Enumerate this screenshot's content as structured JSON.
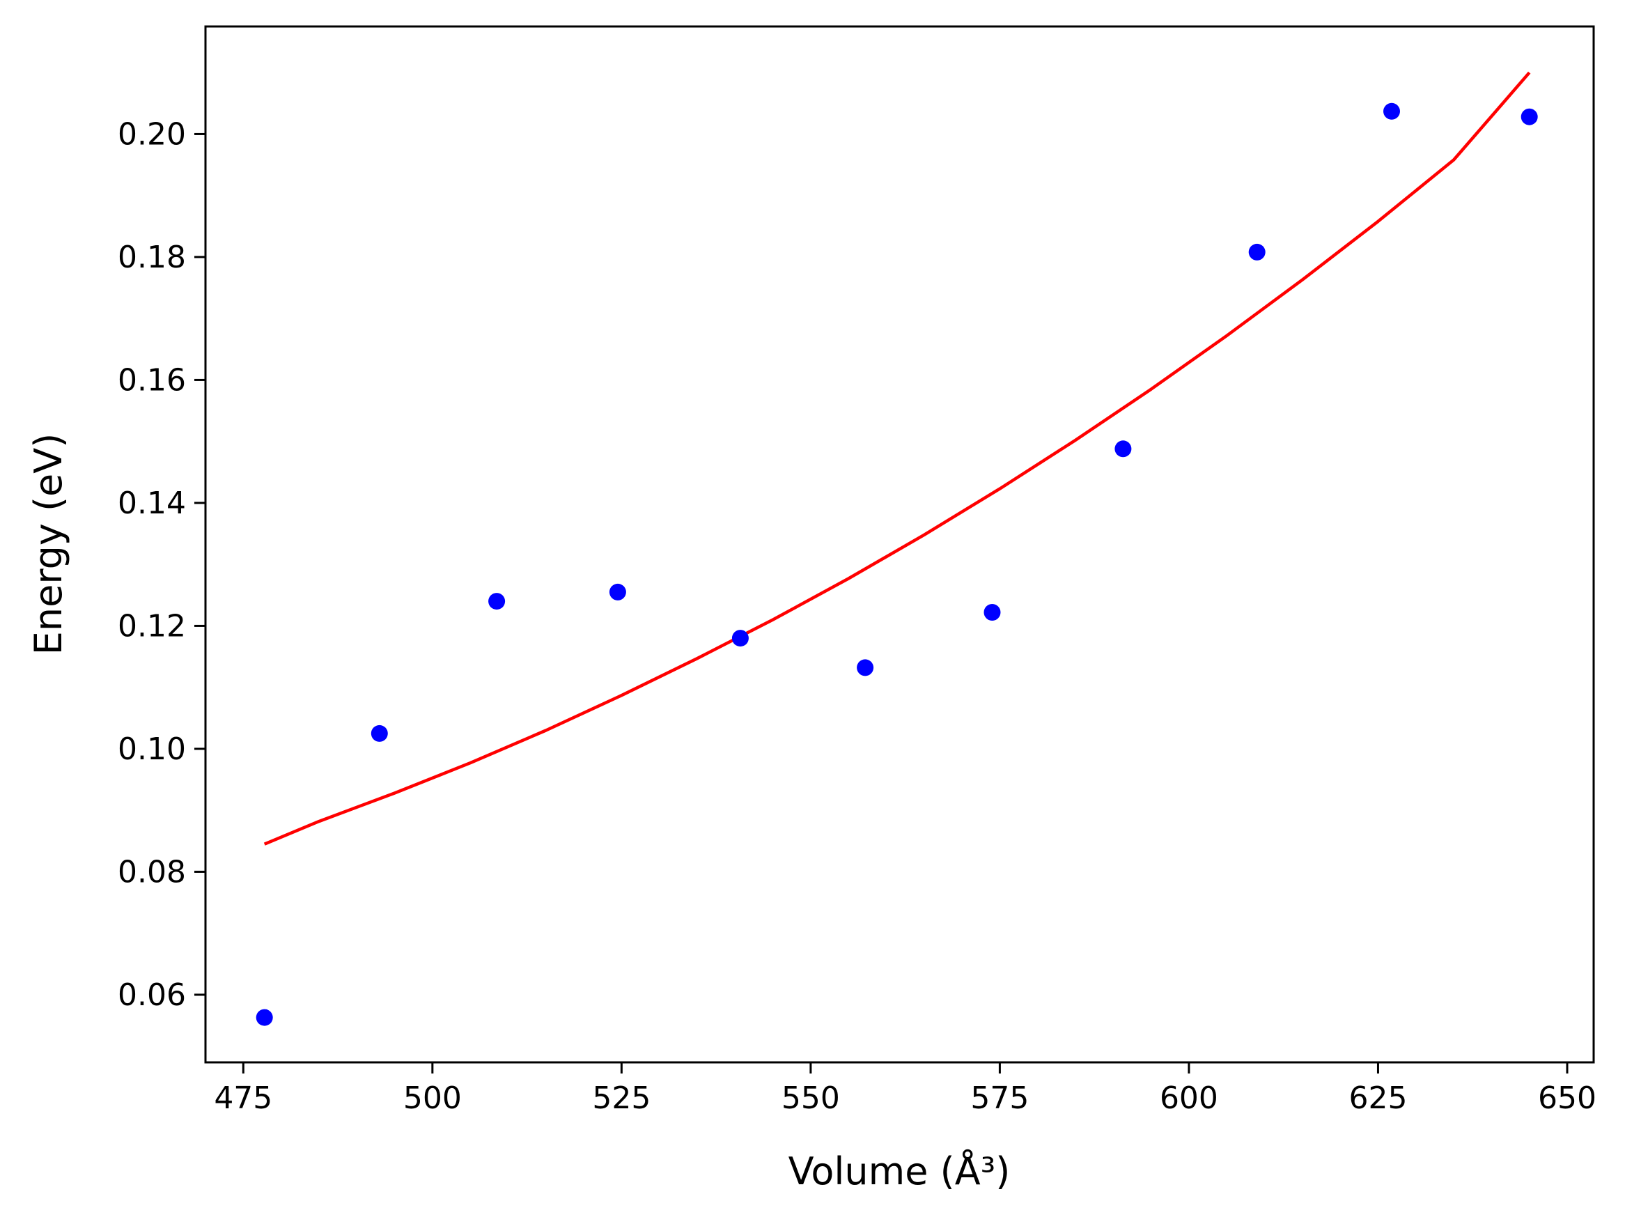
{
  "chart_data": {
    "type": "scatter",
    "xlabel": "Volume (Å³)",
    "ylabel": "Energy (eV)",
    "xlim": [
      470,
      653.5
    ],
    "ylim": [
      0.049,
      0.2175
    ],
    "x_ticks": [
      475,
      500,
      525,
      550,
      575,
      600,
      625,
      650
    ],
    "y_ticks": [
      0.06,
      0.08,
      0.1,
      0.12,
      0.14,
      0.16,
      0.18,
      0.2
    ],
    "x_tick_labels": [
      "475",
      "500",
      "525",
      "550",
      "575",
      "600",
      "625",
      "650"
    ],
    "y_tick_labels": [
      "0.06",
      "0.08",
      "0.10",
      "0.12",
      "0.14",
      "0.16",
      "0.18",
      "0.20"
    ],
    "grid": false,
    "series": [
      {
        "kind": "scatter",
        "color": "#0000ff",
        "x": [
          477.8,
          493.0,
          508.5,
          524.5,
          540.7,
          557.2,
          574.0,
          591.3,
          609.0,
          626.8,
          645.0
        ],
        "y": [
          0.0563,
          0.1025,
          0.124,
          0.1255,
          0.118,
          0.1132,
          0.1222,
          0.1488,
          0.1808,
          0.2037,
          0.2028
        ]
      },
      {
        "kind": "line",
        "color": "#ff0000",
        "x": [
          477.8,
          485,
          495,
          505,
          515,
          525,
          535,
          545,
          555,
          565,
          575,
          585,
          595,
          605,
          615,
          625,
          635,
          645
        ],
        "y": [
          0.0845,
          0.0882,
          0.0928,
          0.0977,
          0.103,
          0.1087,
          0.1147,
          0.121,
          0.1277,
          0.1348,
          0.1423,
          0.1502,
          0.1585,
          0.1672,
          0.1763,
          0.1858,
          0.1958,
          0.21
        ]
      }
    ]
  }
}
